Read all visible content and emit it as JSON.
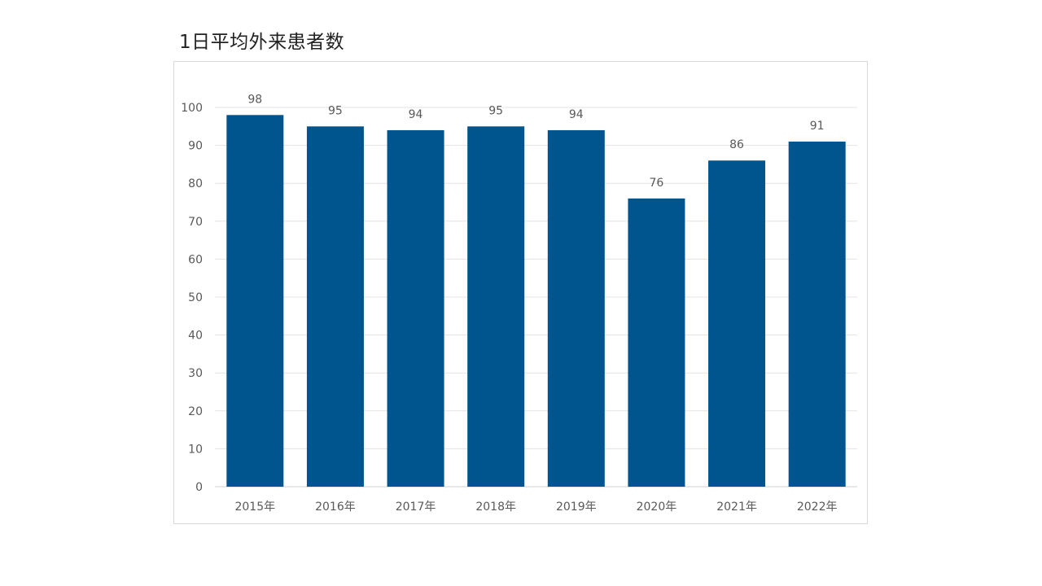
{
  "chart_data": {
    "type": "bar",
    "title": "1日平均外来患者数",
    "categories": [
      "2015年",
      "2016年",
      "2017年",
      "2018年",
      "2019年",
      "2020年",
      "2021年",
      "2022年"
    ],
    "values": [
      98,
      95,
      94,
      95,
      94,
      76,
      86,
      91
    ],
    "ylim": [
      0,
      100
    ],
    "yticks": [
      0,
      10,
      20,
      30,
      40,
      50,
      60,
      70,
      80,
      90,
      100
    ],
    "xlabel": "",
    "ylabel": "",
    "grid": true,
    "data_labels": true,
    "bar_color": "#00558f",
    "grid_color": "#e3e3e3",
    "text_color": "#595959"
  }
}
